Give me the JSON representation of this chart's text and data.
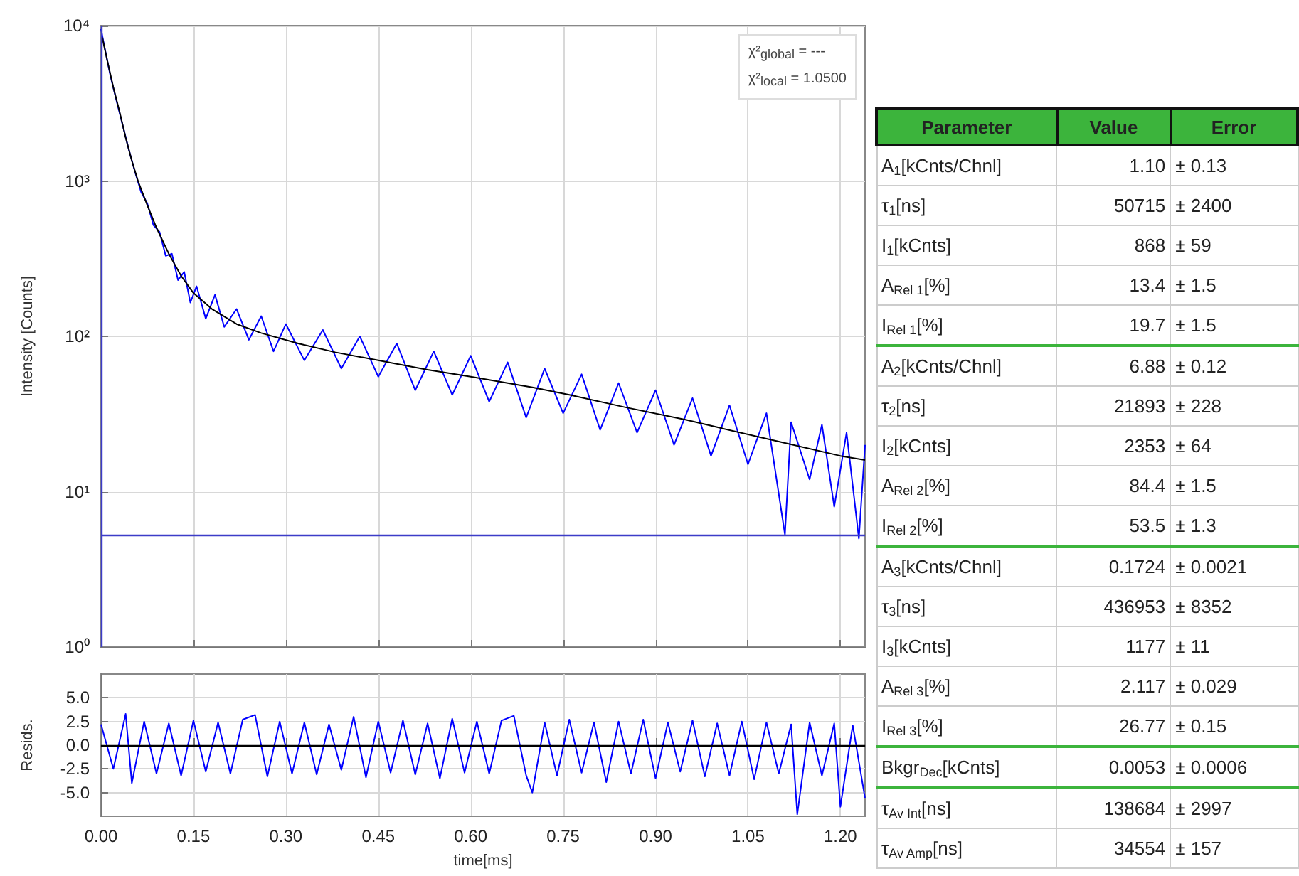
{
  "chart_data": [
    {
      "type": "line",
      "ylabel": "Intensity [Counts]",
      "log": "y",
      "grid": true,
      "marker": "none",
      "tick_labels": "y",
      "xlim": [
        0,
        1.24
      ],
      "xticks": [
        0,
        0.15,
        0.3,
        0.45,
        0.6,
        0.75,
        0.9,
        1.05,
        1.2
      ],
      "ylim": [
        1,
        10000
      ],
      "yticks": [
        {
          "value": 1,
          "label": "10⁰"
        },
        {
          "value": 10,
          "label": "10¹"
        },
        {
          "value": 100,
          "label": "10²"
        },
        {
          "value": 1000,
          "label": "10³"
        },
        {
          "value": 10000,
          "label": "10⁴"
        }
      ],
      "annotations": [
        "χ²$_{global}$ = ---",
        "χ²$_{local}$ = 1.0500"
      ],
      "ref_lines": [
        {
          "axis": "y",
          "value": 5.3,
          "color": "#3c3cc8"
        },
        {
          "axis": "x",
          "value": 0.002,
          "color": "#3c3cc8"
        }
      ],
      "series": [
        {
          "color": "#0000ff",
          "x": [
            0,
            0.005,
            0.015,
            0.025,
            0.035,
            0.045,
            0.055,
            0.065,
            0.075,
            0.085,
            0.095,
            0.105,
            0.115,
            0.125,
            0.135,
            0.145,
            0.155,
            0.17,
            0.185,
            0.2,
            0.22,
            0.24,
            0.26,
            0.28,
            0.3,
            0.33,
            0.36,
            0.39,
            0.42,
            0.45,
            0.48,
            0.51,
            0.54,
            0.57,
            0.6,
            0.63,
            0.66,
            0.69,
            0.72,
            0.75,
            0.78,
            0.81,
            0.84,
            0.87,
            0.9,
            0.93,
            0.96,
            0.99,
            1.02,
            1.05,
            1.08,
            1.11,
            1.12,
            1.15,
            1.17,
            1.19,
            1.21,
            1.23,
            1.24
          ],
          "values": [
            9500,
            7500,
            4800,
            3300,
            2300,
            1600,
            1150,
            850,
            720,
            520,
            470,
            330,
            340,
            230,
            260,
            165,
            210,
            130,
            185,
            115,
            150,
            95,
            135,
            80,
            120,
            70,
            110,
            62,
            100,
            55,
            90,
            45,
            80,
            42,
            75,
            38,
            68,
            30,
            62,
            32,
            57,
            25,
            50,
            24,
            45,
            20,
            40,
            17,
            36,
            15,
            32,
            5.3,
            28,
            12,
            27,
            8,
            24,
            5,
            20
          ]
        },
        {
          "color": "#000000",
          "x": [
            0.002,
            0.01,
            0.02,
            0.03,
            0.04,
            0.05,
            0.06,
            0.075,
            0.09,
            0.11,
            0.13,
            0.15,
            0.18,
            0.22,
            0.26,
            0.32,
            0.38,
            0.45,
            0.53,
            0.6,
            0.7,
            0.76,
            0.85,
            0.95,
            1.0,
            1.1,
            1.2,
            1.24
          ],
          "values": [
            8400,
            6000,
            4000,
            2800,
            1900,
            1350,
            1000,
            700,
            500,
            340,
            245,
            190,
            150,
            120,
            105,
            90,
            79,
            70,
            61,
            55,
            47,
            42,
            35,
            29,
            26,
            21,
            17,
            16
          ]
        }
      ]
    },
    {
      "type": "line",
      "xlabel": "time[ms]",
      "ylabel": "Resids.",
      "grid": true,
      "marker": "none",
      "xlim": [
        0,
        1.24
      ],
      "xticks": [
        {
          "value": 0,
          "label": "0.00"
        },
        0.15,
        {
          "value": 0.3,
          "label": "0.30"
        },
        0.45,
        {
          "value": 0.6,
          "label": "0.60"
        },
        0.75,
        {
          "value": 0.9,
          "label": "0.90"
        },
        1.05,
        {
          "value": 1.2,
          "label": "1.20"
        }
      ],
      "ylim": [
        -7.5,
        7.5
      ],
      "yticks": [
        {
          "value": -5,
          "label": "-5.0"
        },
        -2.5,
        {
          "value": 0,
          "label": "0.0"
        },
        2.5,
        {
          "value": 5,
          "label": "5.0"
        }
      ],
      "ref_lines": [
        {
          "axis": "y",
          "value": 0,
          "color": "#000000"
        }
      ],
      "series": [
        {
          "color": "#0000ff",
          "x": [
            0,
            0.02,
            0.04,
            0.05,
            0.07,
            0.09,
            0.11,
            0.13,
            0.15,
            0.17,
            0.19,
            0.21,
            0.23,
            0.25,
            0.27,
            0.29,
            0.31,
            0.33,
            0.35,
            0.37,
            0.39,
            0.41,
            0.43,
            0.45,
            0.47,
            0.49,
            0.51,
            0.53,
            0.55,
            0.57,
            0.59,
            0.61,
            0.63,
            0.65,
            0.67,
            0.69,
            0.7,
            0.72,
            0.74,
            0.76,
            0.78,
            0.8,
            0.82,
            0.84,
            0.86,
            0.88,
            0.9,
            0.92,
            0.94,
            0.96,
            0.98,
            1.0,
            1.02,
            1.04,
            1.06,
            1.08,
            1.1,
            1.12,
            1.13,
            1.15,
            1.17,
            1.19,
            1.2,
            1.22,
            1.24
          ],
          "values": [
            2.2,
            -2.5,
            3.3,
            -4,
            2.5,
            -3,
            2.3,
            -3.2,
            2.6,
            -2.8,
            2.4,
            -3,
            2.7,
            3.2,
            -3.3,
            2.5,
            -3,
            2.4,
            -3.1,
            2.2,
            -2.6,
            3,
            -3.4,
            2.5,
            -2.9,
            2.6,
            -3.1,
            2.3,
            -3.5,
            2.8,
            -2.9,
            2.5,
            -3,
            2.6,
            3.1,
            -3.2,
            -5,
            2.4,
            -3.2,
            2.7,
            -2.9,
            2.4,
            -3.9,
            2.5,
            -3,
            2.7,
            -3.5,
            2.4,
            -2.8,
            2.6,
            -3.3,
            2.3,
            -3.2,
            2.5,
            -3.6,
            2.4,
            -3,
            2.2,
            -7.3,
            2.4,
            -3.2,
            2.3,
            -6.5,
            2.1,
            -5.6
          ]
        }
      ]
    },
    {
      "type": "other",
      "annotations": [
        "Parameter",
        "Value",
        "Error",
        "A$_{1}$[kCnts/Chnl]",
        "1.10",
        "± 0.13",
        "τ$_{1}$[ns]",
        "50715",
        "± 2400",
        "I$_{1}$[kCnts]",
        "868",
        "± 59",
        "A$_{Rel 1}$[%]",
        "13.4",
        "± 1.5",
        "I$_{Rel 1}$[%]",
        "19.7",
        "± 1.5",
        "A$_{2}$[kCnts/Chnl]",
        "6.88",
        "± 0.12",
        "τ$_{2}$[ns]",
        "21893",
        "± 228",
        "I$_{2}$[kCnts]",
        "2353",
        "± 64",
        "A$_{Rel 2}$[%]",
        "84.4",
        "± 1.5",
        "I$_{Rel 2}$[%]",
        "53.5",
        "± 1.3",
        "A$_{3}$[kCnts/Chnl]",
        "0.1724",
        "± 0.0021",
        "τ$_{3}$[ns]",
        "436953",
        "± 8352",
        "I$_{3}$[kCnts]",
        "1177",
        "± 11",
        "A$_{Rel 3}$[%]",
        "2.117",
        "± 0.029",
        "I$_{Rel 3}$[%]",
        "26.77",
        "± 0.15",
        "Bkgr$_{Dec}$[kCnts]",
        "0.0053",
        "± 0.0006",
        "τ$_{Av Int}$[ns]",
        "138684",
        "± 2997",
        "τ$_{Av Amp}$[ns]",
        "34554",
        "± 157"
      ]
    }
  ]
}
